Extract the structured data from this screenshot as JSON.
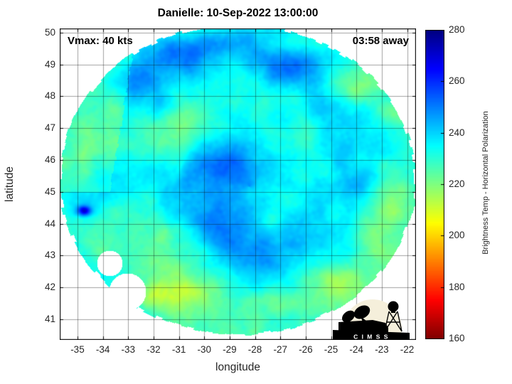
{
  "chart_data": {
    "type": "heatmap",
    "title": "Danielle: 10-Sep-2022 13:00:00",
    "annotations": {
      "vmax": "Vmax: 40 kts",
      "eta": "03:58 away"
    },
    "axes": {
      "xlabel": "longitude",
      "ylabel": "latitude",
      "xlim": [
        -35.7,
        -21.65
      ],
      "ylim": [
        40.35,
        50.13
      ],
      "xticks": [
        -35,
        -34,
        -33,
        -32,
        -31,
        -30,
        -29,
        -28,
        -27,
        -26,
        -25,
        -24,
        -23,
        -22
      ],
      "yticks": [
        41,
        42,
        43,
        44,
        45,
        46,
        47,
        48,
        49,
        50
      ],
      "grid": true
    },
    "colorbar": {
      "label": "Brightness Temp - Horizontal Polarization",
      "min": 160,
      "max": 280,
      "ticks": [
        160,
        180,
        200,
        220,
        240,
        260,
        280
      ],
      "stops": [
        [
          160,
          "#800000"
        ],
        [
          175,
          "#ff0000"
        ],
        [
          205,
          "#ffff00"
        ],
        [
          235,
          "#00ffff"
        ],
        [
          265,
          "#0000ff"
        ],
        [
          280,
          "#000080"
        ]
      ]
    },
    "storm_center": {
      "lon": -28.5,
      "lat": 45.3
    },
    "observed_value_range_k": [
      208,
      275
    ],
    "background_value_k": 232,
    "swath": {
      "cx": 250,
      "cy": 212,
      "rx": 250,
      "ry": 218,
      "jag_amp": 0.045,
      "jag_freq": 24,
      "cutouts": [
        {
          "x": 95,
          "y": 370,
          "r": 26
        },
        {
          "x": 70,
          "y": 330,
          "r": 18
        }
      ]
    },
    "field_model": {
      "base": 232,
      "center": {
        "x": 266,
        "y": 222
      },
      "center_bump": {
        "amp": 13,
        "sigma": 88
      },
      "spiral": {
        "amp": 8,
        "pitch": 29,
        "phase": 1.2,
        "rpeak": 120,
        "rwidth": 170
      },
      "noise_amp": 9,
      "north_gradient": 0.012,
      "seam": {
        "x1": 101,
        "y1": 45,
        "x2": 79,
        "y2": 175,
        "dv": -6
      },
      "blobs": [
        {
          "x": 34,
          "y": 256,
          "rx": 10,
          "ry": 7,
          "a": 36
        },
        {
          "x": 111,
          "y": 65,
          "rx": 48,
          "ry": 30,
          "a": 11
        },
        {
          "x": 171,
          "y": 35,
          "rx": 40,
          "ry": 22,
          "a": 9
        },
        {
          "x": 216,
          "y": 22,
          "rx": 36,
          "ry": 16,
          "a": 8
        },
        {
          "x": 311,
          "y": 55,
          "rx": 30,
          "ry": 20,
          "a": 7
        },
        {
          "x": 116,
          "y": 212,
          "rx": 46,
          "ry": 36,
          "a": 8
        },
        {
          "x": 425,
          "y": 80,
          "rx": 58,
          "ry": 22,
          "a": -13
        },
        {
          "x": 460,
          "y": 122,
          "rx": 26,
          "ry": 18,
          "a": -9
        },
        {
          "x": 462,
          "y": 232,
          "rx": 22,
          "ry": 46,
          "a": -11
        },
        {
          "x": 437,
          "y": 292,
          "rx": 28,
          "ry": 28,
          "a": -10
        },
        {
          "x": 386,
          "y": 356,
          "rx": 52,
          "ry": 22,
          "a": -11
        },
        {
          "x": 296,
          "y": 382,
          "rx": 52,
          "ry": 17,
          "a": -8
        },
        {
          "x": 131,
          "y": 376,
          "rx": 52,
          "ry": 21,
          "a": -11
        },
        {
          "x": 56,
          "y": 312,
          "rx": 23,
          "ry": 42,
          "a": -8
        },
        {
          "x": 36,
          "y": 172,
          "rx": 17,
          "ry": 56,
          "a": -9
        },
        {
          "x": 76,
          "y": 112,
          "rx": 23,
          "ry": 36,
          "a": -8
        },
        {
          "x": 332,
          "y": 22,
          "rx": 21,
          "ry": 13,
          "a": -7
        }
      ]
    },
    "logo": {
      "banner_text": "C I M S S"
    }
  }
}
